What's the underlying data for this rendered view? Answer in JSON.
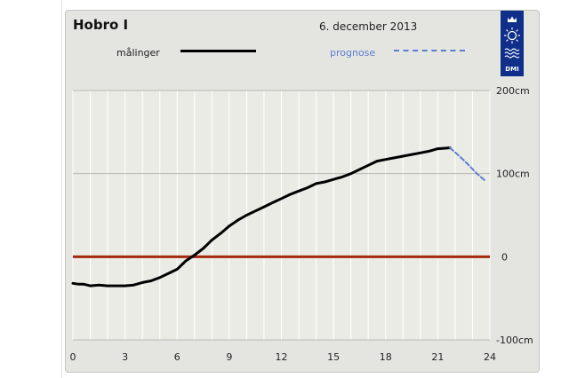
{
  "header": {
    "station": "Hobro I",
    "date": "6. december 2013"
  },
  "legend": {
    "measured": "målinger",
    "forecast": "prognose"
  },
  "logo": {
    "text": "DMI"
  },
  "colors": {
    "measured": "#000000",
    "forecast": "#5a7fce",
    "zero_line": "#a52a0a",
    "logo_bg": "#0f2f8a",
    "plot_bg": "#ebebe6",
    "panel_bg": "#e4e4e0"
  },
  "chart_data": {
    "type": "line",
    "xlim": [
      0,
      24
    ],
    "ylim": [
      -100,
      200
    ],
    "xticks": [
      0,
      3,
      6,
      9,
      12,
      15,
      18,
      21,
      24
    ],
    "xtick_labels": [
      "0",
      "3",
      "6",
      "9",
      "12",
      "15",
      "18",
      "21",
      "24"
    ],
    "yticks": [
      -100,
      0,
      100,
      200
    ],
    "ytick_labels": [
      "-100cm",
      "0",
      "100cm",
      "200cm"
    ],
    "grid": true,
    "reference_line": 0,
    "series": [
      {
        "name": "målinger",
        "style": "solid",
        "points": [
          [
            0,
            -32
          ],
          [
            0.3,
            -33
          ],
          [
            0.6,
            -33
          ],
          [
            1.0,
            -35
          ],
          [
            1.5,
            -34
          ],
          [
            2.0,
            -35
          ],
          [
            2.5,
            -35
          ],
          [
            3.0,
            -35
          ],
          [
            3.5,
            -34
          ],
          [
            4.0,
            -31
          ],
          [
            4.5,
            -29
          ],
          [
            5.0,
            -25
          ],
          [
            5.5,
            -20
          ],
          [
            6.0,
            -15
          ],
          [
            6.5,
            -5
          ],
          [
            7.0,
            2
          ],
          [
            7.5,
            10
          ],
          [
            8.0,
            20
          ],
          [
            8.5,
            28
          ],
          [
            9.0,
            37
          ],
          [
            9.5,
            44
          ],
          [
            10.0,
            50
          ],
          [
            10.5,
            55
          ],
          [
            11.0,
            60
          ],
          [
            11.5,
            65
          ],
          [
            12.0,
            70
          ],
          [
            12.5,
            75
          ],
          [
            13.0,
            79
          ],
          [
            13.5,
            83
          ],
          [
            14.0,
            88
          ],
          [
            14.5,
            90
          ],
          [
            15.0,
            93
          ],
          [
            15.5,
            96
          ],
          [
            16.0,
            100
          ],
          [
            16.5,
            105
          ],
          [
            17.0,
            110
          ],
          [
            17.5,
            115
          ],
          [
            18.0,
            117
          ],
          [
            18.5,
            119
          ],
          [
            19.0,
            121
          ],
          [
            19.5,
            123
          ],
          [
            20.0,
            125
          ],
          [
            20.5,
            127
          ],
          [
            21.0,
            130
          ],
          [
            21.7,
            131
          ]
        ]
      },
      {
        "name": "prognose",
        "style": "dashed",
        "points": [
          [
            21.7,
            131
          ],
          [
            22.2,
            122
          ],
          [
            22.7,
            112
          ],
          [
            23.2,
            101
          ],
          [
            23.7,
            92
          ]
        ]
      }
    ]
  }
}
